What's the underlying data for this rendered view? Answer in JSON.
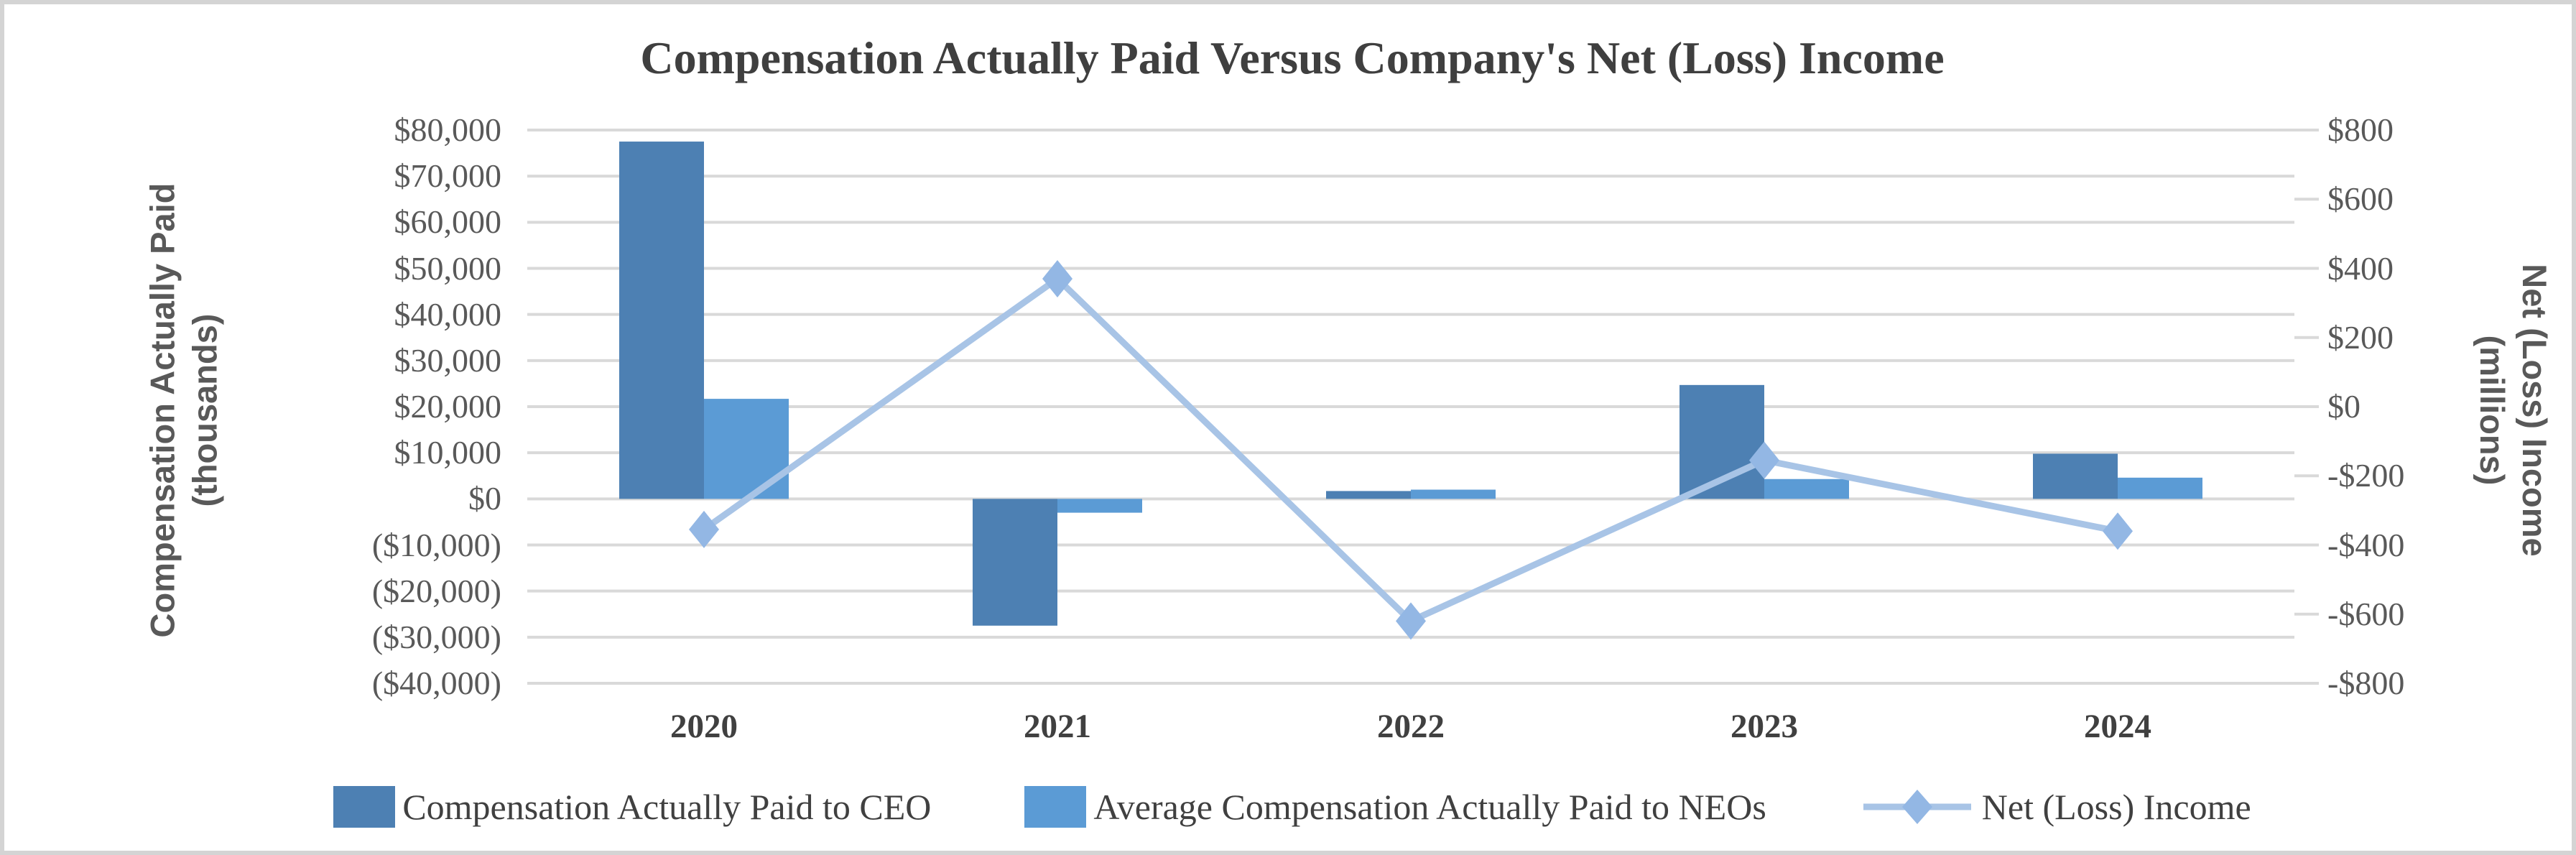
{
  "title": "Compensation Actually Paid Versus Company's Net (Loss) Income",
  "left_axis": {
    "title_line1": "Compensation Actually Paid",
    "title_line2": "(thousands)",
    "ticks": [
      "$80,000",
      "$70,000",
      "$60,000",
      "$50,000",
      "$40,000",
      "$30,000",
      "$20,000",
      "$10,000",
      "$0",
      "($10,000)",
      "($20,000)",
      "($30,000)",
      "($40,000)"
    ]
  },
  "right_axis": {
    "title_line1": "Net (Loss) Income",
    "title_line2": "(millions)",
    "ticks": [
      "$800",
      "$600",
      "$400",
      "$200",
      "$0",
      "-$200",
      "-$400",
      "-$600",
      "-$800"
    ]
  },
  "chart_data": {
    "type": "combo-bar-line",
    "title": "Compensation Actually Paid Versus Company's Net (Loss) Income",
    "categories": [
      "2020",
      "2021",
      "2022",
      "2023",
      "2024"
    ],
    "series": [
      {
        "name": "Compensation Actually Paid to CEO",
        "type": "bar",
        "axis": "left",
        "color": "#4D80B3",
        "values": [
          77500,
          -27500,
          1700,
          24700,
          9800
        ]
      },
      {
        "name": "Average Compensation Actually Paid to NEOs",
        "type": "bar",
        "axis": "left",
        "color": "#5B9BD5",
        "values": [
          21700,
          -3000,
          2000,
          4300,
          4600
        ]
      },
      {
        "name": "Net (Loss) Income",
        "type": "line",
        "axis": "right",
        "color": "#A8C4E6",
        "marker": "diamond",
        "marker_color": "#93B7E4",
        "values": [
          -355,
          370,
          -620,
          -155,
          -360
        ]
      }
    ],
    "left_ylim": [
      -40000,
      80000
    ],
    "left_step": 10000,
    "right_ylim": [
      -800,
      800
    ],
    "right_step": 200,
    "grid": "horizontal",
    "gridline_color": "#D9D9D9",
    "legend_position": "bottom"
  },
  "colors": {
    "title_text": "#3F3F3F",
    "axis_text": "#595959",
    "category_text": "#404040",
    "gridline": "#D9D9D9",
    "frame_border": "#D4D4D4",
    "ceo_bar": "#4D80B3",
    "neo_bar": "#5B9BD5",
    "net_income_line": "#A8C4E6"
  }
}
